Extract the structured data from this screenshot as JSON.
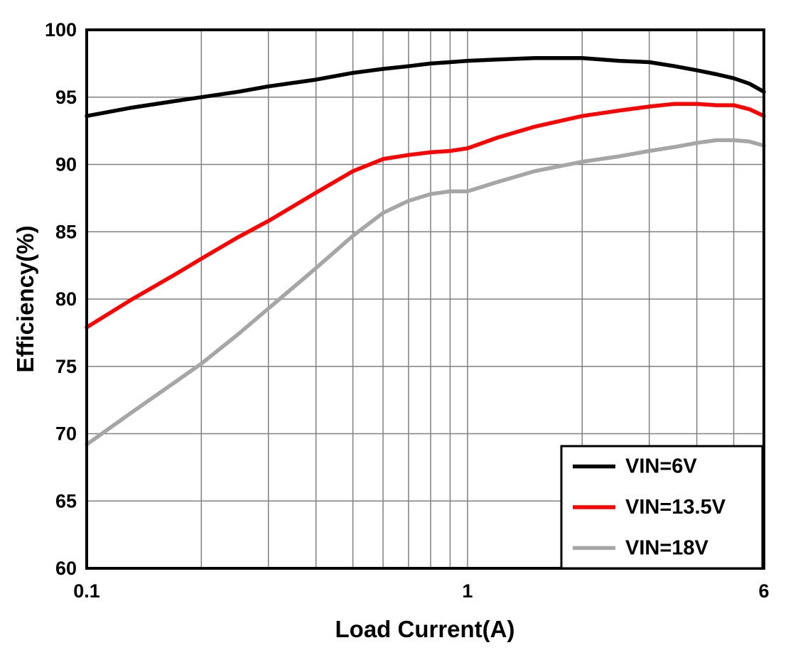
{
  "chart_data": {
    "type": "line",
    "title": "",
    "xlabel": "Load Current(A)",
    "ylabel": "Efficiency(%)",
    "x_scale": "log",
    "xlim": [
      0.1,
      6
    ],
    "ylim": [
      60,
      100
    ],
    "grid": true,
    "grid_color": "#808080",
    "border_color": "#000000",
    "legend_position": "bottom-right",
    "x_ticks": [
      {
        "value": 0.1,
        "label": "0.1"
      },
      {
        "value": 1,
        "label": "1"
      },
      {
        "value": 6,
        "label": "6"
      }
    ],
    "y_ticks": [
      60,
      65,
      70,
      75,
      80,
      85,
      90,
      95,
      100
    ],
    "x_gridlines": [
      0.1,
      0.2,
      0.3,
      0.4,
      0.5,
      0.6,
      0.7,
      0.8,
      0.9,
      1,
      2,
      3,
      4,
      5,
      6
    ],
    "x": [
      0.1,
      0.13,
      0.17,
      0.2,
      0.25,
      0.3,
      0.4,
      0.5,
      0.6,
      0.7,
      0.8,
      0.9,
      1.0,
      1.2,
      1.5,
      2.0,
      2.5,
      3.0,
      3.5,
      4.0,
      4.5,
      5.0,
      5.5,
      6.0
    ],
    "series": [
      {
        "name": "VIN=6V",
        "color": "#000000",
        "values": [
          93.6,
          94.2,
          94.7,
          95.0,
          95.4,
          95.8,
          96.3,
          96.8,
          97.1,
          97.3,
          97.5,
          97.6,
          97.7,
          97.8,
          97.9,
          97.9,
          97.7,
          97.6,
          97.3,
          97.0,
          96.7,
          96.4,
          96.0,
          95.4
        ]
      },
      {
        "name": "VIN=13.5V",
        "color": "#ff0000",
        "values": [
          77.9,
          79.9,
          81.8,
          83.0,
          84.6,
          85.8,
          87.9,
          89.5,
          90.4,
          90.7,
          90.9,
          91.0,
          91.2,
          92.0,
          92.8,
          93.6,
          94.0,
          94.3,
          94.5,
          94.5,
          94.4,
          94.4,
          94.1,
          93.6
        ]
      },
      {
        "name": "VIN=18V",
        "color": "#a6a6a6",
        "values": [
          69.2,
          71.5,
          73.8,
          75.2,
          77.4,
          79.3,
          82.3,
          84.7,
          86.4,
          87.3,
          87.8,
          88.0,
          88.0,
          88.7,
          89.5,
          90.2,
          90.6,
          91.0,
          91.3,
          91.6,
          91.8,
          91.8,
          91.7,
          91.4
        ]
      }
    ]
  }
}
